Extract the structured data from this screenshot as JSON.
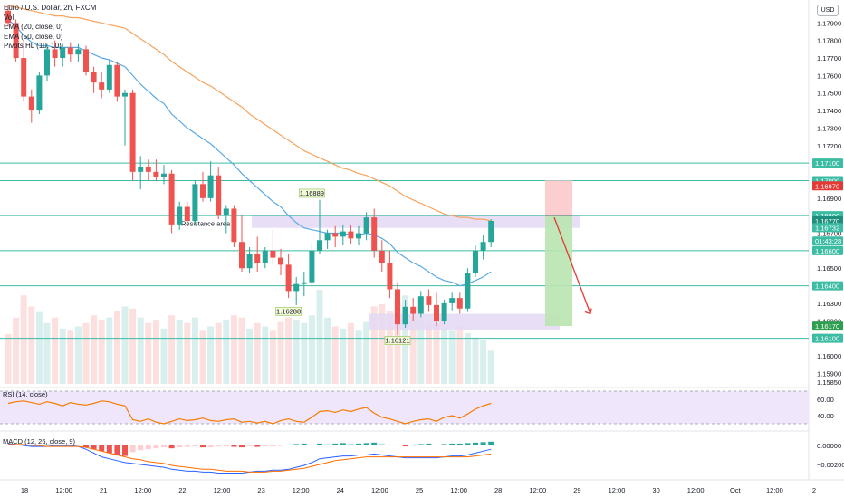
{
  "legend": {
    "title": "Euro / U.S. Dollar, 2h, FXCM",
    "vol": "Vol",
    "ema20": "EMA (20, close, 0)",
    "ema50": "EMA (50, close, 0)",
    "pivots": "Pivots HL (10, 10)"
  },
  "currency_button": "USD",
  "colors": {
    "up": "#26a69a",
    "down": "#ef5350",
    "ema20": "#5aa9e6",
    "ema50": "#f7a35c",
    "level": "#3cbca3",
    "zone": "#e4d8f5",
    "rsi_line": "#f57c00",
    "rsi_band": "#efe6fb",
    "arrow": "#e53935",
    "target_zone": "#b9e4b0",
    "stop_zone": "#fbc9cb"
  },
  "chart_data": [
    {
      "type": "candlestick",
      "symbol": "EURUSD",
      "timeframe": "2h",
      "ylim": [
        1.1585,
        1.18
      ],
      "y_ticks": [
        1.1585,
        1.159,
        1.16,
        1.161,
        1.162,
        1.163,
        1.164,
        1.165,
        1.166,
        1.167,
        1.168,
        1.169,
        1.17,
        1.171,
        1.172,
        1.173,
        1.174,
        1.175,
        1.176,
        1.177,
        1.178,
        1.179
      ],
      "y_tick_labels": [
        "1.15850",
        "1.15900",
        "1.16000",
        "1.16100",
        "1.16200",
        "1.16300",
        "1.16400",
        "1.16500",
        "1.16600",
        "1.16700",
        "1.16800",
        "1.16900",
        "1.17000",
        "1.17100",
        "1.17200",
        "1.17300",
        "1.17400",
        "1.17500",
        "1.17600",
        "1.17700",
        "1.17800",
        "1.17900"
      ],
      "x_ticks": [
        "18",
        "12:00",
        "21",
        "12:00",
        "22",
        "12:00",
        "23",
        "12:00",
        "24",
        "12:00",
        "25",
        "12:00",
        "28",
        "12:00",
        "29",
        "12:00",
        "30",
        "12:00",
        "Oct",
        "12:00",
        "2"
      ],
      "candles": [
        {
          "o": 1.1797,
          "h": 1.18,
          "l": 1.1788,
          "c": 1.179
        },
        {
          "o": 1.179,
          "h": 1.1792,
          "l": 1.1768,
          "c": 1.177
        },
        {
          "o": 1.177,
          "h": 1.178,
          "l": 1.1745,
          "c": 1.1748
        },
        {
          "o": 1.1748,
          "h": 1.1752,
          "l": 1.1733,
          "c": 1.174
        },
        {
          "o": 1.174,
          "h": 1.1762,
          "l": 1.1738,
          "c": 1.176
        },
        {
          "o": 1.176,
          "h": 1.1778,
          "l": 1.1757,
          "c": 1.1775
        },
        {
          "o": 1.1775,
          "h": 1.178,
          "l": 1.1765,
          "c": 1.177
        },
        {
          "o": 1.177,
          "h": 1.1778,
          "l": 1.1765,
          "c": 1.1776
        },
        {
          "o": 1.1776,
          "h": 1.1779,
          "l": 1.1768,
          "c": 1.1772
        },
        {
          "o": 1.1772,
          "h": 1.1778,
          "l": 1.1768,
          "c": 1.1775
        },
        {
          "o": 1.1775,
          "h": 1.1777,
          "l": 1.176,
          "c": 1.1762
        },
        {
          "o": 1.1762,
          "h": 1.1765,
          "l": 1.175,
          "c": 1.1756
        },
        {
          "o": 1.1756,
          "h": 1.1762,
          "l": 1.1747,
          "c": 1.1752
        },
        {
          "o": 1.1752,
          "h": 1.1769,
          "l": 1.175,
          "c": 1.1766
        },
        {
          "o": 1.1766,
          "h": 1.1768,
          "l": 1.1745,
          "c": 1.1748
        },
        {
          "o": 1.1748,
          "h": 1.1752,
          "l": 1.172,
          "c": 1.175
        },
        {
          "o": 1.175,
          "h": 1.1752,
          "l": 1.17,
          "c": 1.1705
        },
        {
          "o": 1.1705,
          "h": 1.1714,
          "l": 1.1695,
          "c": 1.1708
        },
        {
          "o": 1.1708,
          "h": 1.1712,
          "l": 1.17,
          "c": 1.1705
        },
        {
          "o": 1.1705,
          "h": 1.1712,
          "l": 1.17,
          "c": 1.1702
        },
        {
          "o": 1.1702,
          "h": 1.1709,
          "l": 1.1698,
          "c": 1.1704
        },
        {
          "o": 1.1704,
          "h": 1.1706,
          "l": 1.167,
          "c": 1.1675
        },
        {
          "o": 1.1675,
          "h": 1.1688,
          "l": 1.1672,
          "c": 1.1685
        },
        {
          "o": 1.1685,
          "h": 1.1688,
          "l": 1.1674,
          "c": 1.1677
        },
        {
          "o": 1.1677,
          "h": 1.17,
          "l": 1.1675,
          "c": 1.1698
        },
        {
          "o": 1.1698,
          "h": 1.1705,
          "l": 1.1688,
          "c": 1.169
        },
        {
          "o": 1.169,
          "h": 1.1711,
          "l": 1.1688,
          "c": 1.1703
        },
        {
          "o": 1.1703,
          "h": 1.1708,
          "l": 1.1678,
          "c": 1.168
        },
        {
          "o": 1.168,
          "h": 1.1686,
          "l": 1.167,
          "c": 1.1684
        },
        {
          "o": 1.1684,
          "h": 1.1686,
          "l": 1.1662,
          "c": 1.1665
        },
        {
          "o": 1.1665,
          "h": 1.168,
          "l": 1.1648,
          "c": 1.165
        },
        {
          "o": 1.165,
          "h": 1.1662,
          "l": 1.1647,
          "c": 1.1658
        },
        {
          "o": 1.1658,
          "h": 1.1668,
          "l": 1.1648,
          "c": 1.1653
        },
        {
          "o": 1.1653,
          "h": 1.1662,
          "l": 1.165,
          "c": 1.166
        },
        {
          "o": 1.166,
          "h": 1.1672,
          "l": 1.1652,
          "c": 1.1656
        },
        {
          "o": 1.1656,
          "h": 1.1661,
          "l": 1.1646,
          "c": 1.1652
        },
        {
          "o": 1.1652,
          "h": 1.1658,
          "l": 1.1633,
          "c": 1.1637
        },
        {
          "o": 1.1637,
          "h": 1.1645,
          "l": 1.1629,
          "c": 1.1641
        },
        {
          "o": 1.1641,
          "h": 1.1648,
          "l": 1.1634,
          "c": 1.1642
        },
        {
          "o": 1.1642,
          "h": 1.1664,
          "l": 1.164,
          "c": 1.166
        },
        {
          "o": 1.166,
          "h": 1.1689,
          "l": 1.1658,
          "c": 1.1666
        },
        {
          "o": 1.1666,
          "h": 1.1672,
          "l": 1.1661,
          "c": 1.167
        },
        {
          "o": 1.167,
          "h": 1.1674,
          "l": 1.1662,
          "c": 1.1668
        },
        {
          "o": 1.1668,
          "h": 1.1675,
          "l": 1.1663,
          "c": 1.1671
        },
        {
          "o": 1.1671,
          "h": 1.1675,
          "l": 1.1664,
          "c": 1.1667
        },
        {
          "o": 1.1667,
          "h": 1.1674,
          "l": 1.1663,
          "c": 1.167
        },
        {
          "o": 1.167,
          "h": 1.1682,
          "l": 1.1666,
          "c": 1.1679
        },
        {
          "o": 1.1679,
          "h": 1.1684,
          "l": 1.1656,
          "c": 1.166
        },
        {
          "o": 1.166,
          "h": 1.1666,
          "l": 1.1648,
          "c": 1.1653
        },
        {
          "o": 1.1653,
          "h": 1.166,
          "l": 1.1633,
          "c": 1.1638
        },
        {
          "o": 1.1638,
          "h": 1.1642,
          "l": 1.1612,
          "c": 1.1618
        },
        {
          "o": 1.1618,
          "h": 1.1632,
          "l": 1.1616,
          "c": 1.1628
        },
        {
          "o": 1.1628,
          "h": 1.1633,
          "l": 1.162,
          "c": 1.1624
        },
        {
          "o": 1.1624,
          "h": 1.1637,
          "l": 1.1622,
          "c": 1.1634
        },
        {
          "o": 1.1634,
          "h": 1.1638,
          "l": 1.1625,
          "c": 1.1629
        },
        {
          "o": 1.1629,
          "h": 1.1636,
          "l": 1.1617,
          "c": 1.162
        },
        {
          "o": 1.162,
          "h": 1.1632,
          "l": 1.1618,
          "c": 1.163
        },
        {
          "o": 1.163,
          "h": 1.1636,
          "l": 1.1626,
          "c": 1.1633
        },
        {
          "o": 1.1633,
          "h": 1.1636,
          "l": 1.1624,
          "c": 1.1627
        },
        {
          "o": 1.1627,
          "h": 1.165,
          "l": 1.1625,
          "c": 1.1647
        },
        {
          "o": 1.1647,
          "h": 1.1663,
          "l": 1.1645,
          "c": 1.166
        },
        {
          "o": 1.166,
          "h": 1.1669,
          "l": 1.1655,
          "c": 1.1665
        },
        {
          "o": 1.1665,
          "h": 1.1678,
          "l": 1.1662,
          "c": 1.1677
        }
      ],
      "volume": [
        45,
        60,
        80,
        70,
        65,
        55,
        60,
        50,
        48,
        52,
        55,
        62,
        58,
        60,
        66,
        70,
        68,
        60,
        55,
        58,
        50,
        62,
        58,
        55,
        60,
        48,
        52,
        55,
        58,
        62,
        60,
        50,
        55,
        52,
        48,
        56,
        60,
        58,
        55,
        62,
        85,
        60,
        52,
        50,
        55,
        48,
        56,
        70,
        72,
        66,
        74,
        80,
        60,
        58,
        56,
        54,
        50,
        48,
        52,
        46,
        42,
        40,
        30
      ],
      "ema20": [
        1.1792,
        1.1788,
        1.1783,
        1.1779,
        1.1777,
        1.1777,
        1.1776,
        1.1776,
        1.1776,
        1.1776,
        1.1774,
        1.1772,
        1.177,
        1.1769,
        1.1767,
        1.1765,
        1.176,
        1.1755,
        1.1751,
        1.1747,
        1.1744,
        1.1738,
        1.1734,
        1.173,
        1.1727,
        1.1724,
        1.1721,
        1.1717,
        1.1713,
        1.1709,
        1.1704,
        1.17,
        1.1696,
        1.1692,
        1.1688,
        1.1685,
        1.168,
        1.1676,
        1.1673,
        1.1672,
        1.1671,
        1.167,
        1.167,
        1.167,
        1.1669,
        1.1669,
        1.167,
        1.1669,
        1.1667,
        1.1664,
        1.1659,
        1.1656,
        1.1653,
        1.1651,
        1.1648,
        1.1645,
        1.1643,
        1.1642,
        1.164,
        1.1641,
        1.1643,
        1.1645,
        1.1648
      ],
      "ema50": [
        1.18,
        1.1799,
        1.1798,
        1.1797,
        1.1796,
        1.1795,
        1.1794,
        1.1794,
        1.1793,
        1.1793,
        1.1792,
        1.1791,
        1.179,
        1.1789,
        1.1788,
        1.1787,
        1.1784,
        1.1781,
        1.1778,
        1.1775,
        1.1772,
        1.1768,
        1.1765,
        1.1762,
        1.1759,
        1.1756,
        1.1754,
        1.1751,
        1.1748,
        1.1745,
        1.1742,
        1.1738,
        1.1735,
        1.1732,
        1.1729,
        1.1726,
        1.1723,
        1.172,
        1.1717,
        1.1715,
        1.1713,
        1.1711,
        1.1709,
        1.1707,
        1.1706,
        1.1704,
        1.1703,
        1.1701,
        1.1699,
        1.1697,
        1.1694,
        1.1691,
        1.1689,
        1.1687,
        1.1685,
        1.1683,
        1.1681,
        1.168,
        1.1679,
        1.1679,
        1.1678,
        1.1678,
        1.1677
      ],
      "horizontal_levels": [
        1.171,
        1.17,
        1.168,
        1.166,
        1.164,
        1.161
      ],
      "resistance_area": {
        "label": "Resistance area",
        "from": 1.1673,
        "to": 1.168
      },
      "support_zone": {
        "from": 1.1615,
        "to": 1.1624
      },
      "pivot_labels": [
        {
          "text": "1.16889",
          "index": 39,
          "price": 1.16889
        },
        {
          "text": "1.16288",
          "index": 36,
          "price": 1.16288
        },
        {
          "text": "1.16121",
          "index": 50,
          "price": 1.16121
        }
      ],
      "trade_setup": {
        "entry": 1.168,
        "stop": 1.1697,
        "target": 1.1617,
        "direction": "short"
      },
      "price_badges": [
        {
          "text": "1.17100",
          "price": 1.171,
          "kind": "level"
        },
        {
          "text": "1.17000",
          "price": 1.17,
          "kind": "level"
        },
        {
          "text": "1.16970",
          "price": 1.1697,
          "kind": "stop"
        },
        {
          "text": "1.16800",
          "price": 1.168,
          "kind": "level"
        },
        {
          "text": "1.16770",
          "price": 1.1677,
          "kind": "dark"
        },
        {
          "text": "1.16732",
          "price": 1.16732,
          "kind": "level"
        },
        {
          "text": "01:43:28",
          "price": 1.16655,
          "kind": "level"
        },
        {
          "text": "1.16600",
          "price": 1.166,
          "kind": "level"
        },
        {
          "text": "1.16400",
          "price": 1.164,
          "kind": "level"
        },
        {
          "text": "1.16170",
          "price": 1.1617,
          "kind": "target"
        },
        {
          "text": "1.16100",
          "price": 1.161,
          "kind": "level"
        }
      ]
    },
    {
      "type": "line",
      "name": "RSI (14, close)",
      "ylim": [
        25,
        75
      ],
      "y_ticks": [
        40,
        60
      ],
      "y_tick_labels": [
        "40.00",
        "60.00"
      ],
      "band": [
        30,
        70
      ],
      "values": [
        55,
        57,
        58,
        56,
        54,
        57,
        55,
        52,
        56,
        54,
        53,
        55,
        58,
        57,
        54,
        52,
        35,
        33,
        36,
        32,
        30,
        33,
        36,
        34,
        35,
        37,
        34,
        33,
        35,
        36,
        32,
        33,
        31,
        33,
        30,
        34,
        36,
        33,
        32,
        38,
        45,
        46,
        44,
        47,
        45,
        48,
        50,
        43,
        38,
        36,
        33,
        30,
        33,
        35,
        36,
        33,
        38,
        40,
        37,
        42,
        48,
        52,
        55
      ]
    },
    {
      "type": "bar",
      "name": "MACD (12, 26, close, 9)",
      "ylim": [
        -0.0032,
        0.001
      ],
      "y_ticks": [
        0.0,
        -0.002
      ],
      "y_tick_labels": [
        "0.00000",
        "−0.00200"
      ],
      "histogram": [
        0.0001,
        0.00015,
        0.00012,
        0.0001,
        8e-05,
        0.00012,
        0.0001,
        8e-05,
        6e-05,
        5e-05,
        -0.0002,
        -0.0004,
        -0.0006,
        -0.0008,
        -0.001,
        -0.0011,
        -0.0007,
        -0.0005,
        -0.0004,
        -0.0003,
        -0.0002,
        -0.0003,
        -0.0002,
        -0.00015,
        -0.0001,
        -0.0002,
        -0.0002,
        -0.0001,
        -0.0001,
        -0.00015,
        -0.0002,
        -0.0001,
        -0.00015,
        -0.0001,
        -0.0001,
        -5e-05,
        0.0001,
        0.00015,
        0.0002,
        0.0001,
        0.0002,
        0.00015,
        0.0002,
        0.00025,
        0.0002,
        0.0002,
        0.00025,
        0.0003,
        0.0002,
        0.0001,
        5e-05,
        -0.0001,
        0.0001,
        0.00015,
        0.0002,
        0.0001,
        0.00015,
        0.0002,
        0.0002,
        0.00025,
        0.0003,
        0.00035,
        0.0004
      ],
      "macd": [
        0.0002,
        0.0001,
        0.0,
        -0.0001,
        -0.0001,
        -0.0001,
        0.0,
        0.0,
        0.0,
        -0.0001,
        -0.0004,
        -0.0008,
        -0.0012,
        -0.0014,
        -0.0016,
        -0.0018,
        -0.0019,
        -0.002,
        -0.0021,
        -0.0022,
        -0.0023,
        -0.0025,
        -0.0026,
        -0.0027,
        -0.0027,
        -0.0028,
        -0.0028,
        -0.0029,
        -0.0029,
        -0.0029,
        -0.0029,
        -0.0028,
        -0.0027,
        -0.0027,
        -0.0026,
        -0.0026,
        -0.0025,
        -0.0023,
        -0.0021,
        -0.0018,
        -0.0014,
        -0.0013,
        -0.0012,
        -0.0011,
        -0.0011,
        -0.001,
        -0.001,
        -0.0009,
        -0.001,
        -0.0011,
        -0.0012,
        -0.0013,
        -0.0013,
        -0.0013,
        -0.0013,
        -0.0013,
        -0.0012,
        -0.0011,
        -0.0011,
        -0.001,
        -0.0008,
        -0.0006,
        -0.0004
      ],
      "signal": [
        0.0001,
        0.0001,
        0.0001,
        0.0,
        0.0,
        -0.0001,
        -0.0001,
        -0.0001,
        -0.0001,
        -0.0001,
        -0.0002,
        -0.0004,
        -0.0006,
        -0.0008,
        -0.001,
        -0.0012,
        -0.0014,
        -0.0015,
        -0.0017,
        -0.0018,
        -0.0019,
        -0.0021,
        -0.0022,
        -0.0023,
        -0.0024,
        -0.0025,
        -0.0025,
        -0.0026,
        -0.0027,
        -0.0027,
        -0.0027,
        -0.0028,
        -0.0028,
        -0.0028,
        -0.0027,
        -0.0027,
        -0.0026,
        -0.0025,
        -0.0024,
        -0.0022,
        -0.002,
        -0.0018,
        -0.0016,
        -0.0015,
        -0.0014,
        -0.0013,
        -0.0012,
        -0.0012,
        -0.0012,
        -0.0012,
        -0.0012,
        -0.0012,
        -0.0012,
        -0.0012,
        -0.0012,
        -0.0012,
        -0.0012,
        -0.0012,
        -0.0012,
        -0.0012,
        -0.0011,
        -0.001,
        -0.0009
      ]
    }
  ]
}
